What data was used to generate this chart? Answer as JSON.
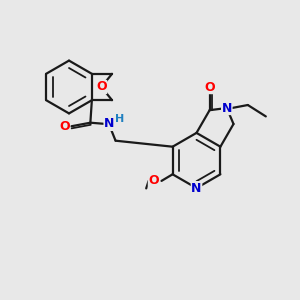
{
  "bg_color": "#e8e8e8",
  "bond_color": "#1a1a1a",
  "atom_colors": {
    "O": "#ff0000",
    "N": "#0000cd",
    "C": "#1a1a1a",
    "H": "#2080c0"
  },
  "font_size": 9,
  "line_width": 1.6,
  "lw_inner": 1.3,
  "figsize": [
    3.0,
    3.0
  ],
  "dpi": 100,
  "xlim": [
    0,
    10
  ],
  "ylim": [
    0,
    10
  ]
}
